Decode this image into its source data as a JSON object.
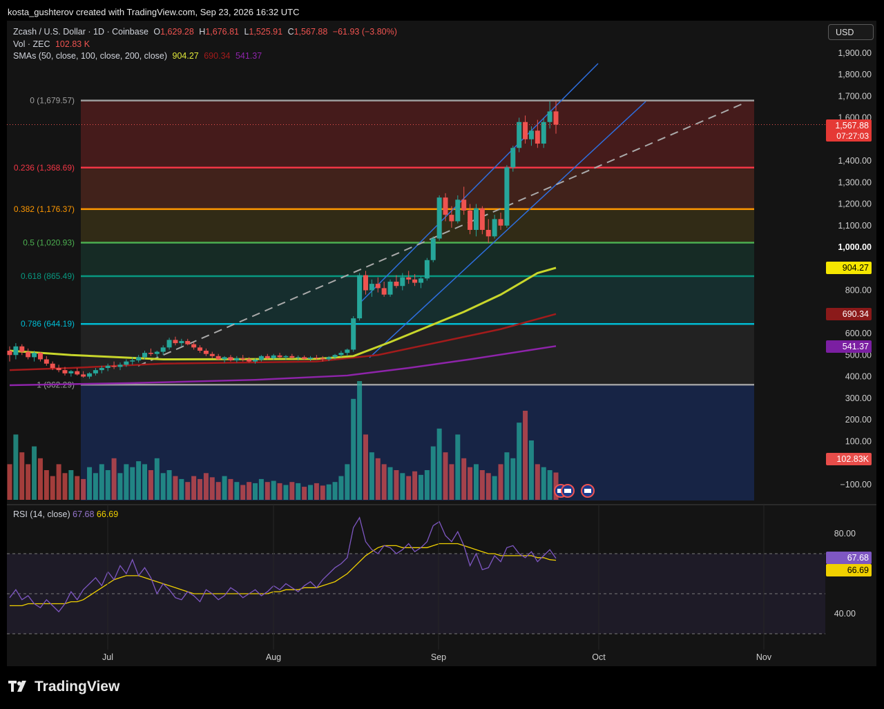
{
  "attribution": "kosta_gushterov created with TradingView.com, Sep 23, 2026 16:32 UTC",
  "brand": "TradingView",
  "currency": "USD",
  "legend": {
    "symbol": "Zcash / U.S. Dollar · 1D · Coinbase",
    "open_label": "O",
    "open": "1,629.28",
    "high_label": "H",
    "high": "1,676.81",
    "low_label": "L",
    "low": "1,525.91",
    "close_label": "C",
    "close": "1,567.88",
    "change": "−61.93 (−3.80%)",
    "vol_label": "Vol · ZEC",
    "vol_value": "102.83 K",
    "sma_label": "SMAs (50, close, 100, close, 200, close)",
    "sma50": "904.27",
    "sma100": "690.34",
    "sma200": "541.37",
    "rsi_label": "RSI (14, close)",
    "rsi_value": "67.68",
    "rsi_ma": "66.69"
  },
  "price_axis": [
    "1,900.00",
    "1,800.00",
    "1,700.00",
    "1,600.00",
    "1,400.00",
    "1,300.00",
    "1,200.00",
    "1,100.00",
    "1,000.00",
    "800.00",
    "600.00",
    "500.00",
    "400.00",
    "300.00",
    "200.00",
    "100.00",
    "−100.00"
  ],
  "rsi_axis": [
    "80.00",
    "40.00"
  ],
  "time_axis": [
    "Jul",
    "Aug",
    "Sep",
    "Oct",
    "Nov"
  ],
  "price_tags": {
    "last": "1,567.88",
    "countdown": "07:27:03",
    "sma50": "904.27",
    "sma100": "690.34",
    "sma200": "541.37",
    "volume": "102.83K",
    "rsi": "67.68",
    "rsi_ma": "66.69"
  },
  "colors": {
    "up": "#26a69a",
    "down": "#ef5350",
    "sma50": "#c8d62b",
    "sma100": "#a31b1b",
    "sma200": "#8e24aa",
    "rsi": "#7e57c2",
    "rsi_ma": "#f0d000",
    "channel": "#2e6fe0"
  },
  "chart_data": {
    "type": "candlestick",
    "fib": [
      {
        "label": "0 (1,679.57)",
        "price": 1679.57,
        "color": "#9e9e9e"
      },
      {
        "label": "0.236 (1,368.69)",
        "price": 1368.69,
        "color": "#f23645"
      },
      {
        "label": "0.382 (1,176.37)",
        "price": 1176.37,
        "color": "#ff9800"
      },
      {
        "label": "0.5 (1,020.93)",
        "price": 1020.93,
        "color": "#4caf50"
      },
      {
        "label": "0.618 (865.49)",
        "price": 865.49,
        "color": "#089981"
      },
      {
        "label": "0.786 (644.19)",
        "price": 644.19,
        "color": "#00bcd4"
      },
      {
        "label": "1 (362.29)",
        "price": 362.29,
        "color": "#9e9e9e"
      }
    ],
    "candles": [
      [
        520,
        540,
        470,
        500
      ],
      [
        500,
        555,
        480,
        540
      ],
      [
        540,
        550,
        500,
        515
      ],
      [
        515,
        530,
        480,
        490
      ],
      [
        490,
        520,
        470,
        510
      ],
      [
        510,
        515,
        470,
        480
      ],
      [
        480,
        495,
        450,
        460
      ],
      [
        460,
        470,
        430,
        440
      ],
      [
        440,
        455,
        420,
        430
      ],
      [
        430,
        445,
        405,
        415
      ],
      [
        415,
        430,
        400,
        425
      ],
      [
        425,
        440,
        405,
        410
      ],
      [
        410,
        425,
        395,
        400
      ],
      [
        400,
        420,
        390,
        415
      ],
      [
        415,
        440,
        405,
        430
      ],
      [
        430,
        450,
        415,
        440
      ],
      [
        440,
        460,
        425,
        450
      ],
      [
        450,
        470,
        435,
        445
      ],
      [
        445,
        465,
        430,
        455
      ],
      [
        455,
        480,
        445,
        470
      ],
      [
        470,
        490,
        455,
        475
      ],
      [
        475,
        500,
        465,
        490
      ],
      [
        490,
        520,
        480,
        510
      ],
      [
        510,
        530,
        495,
        505
      ],
      [
        505,
        520,
        490,
        515
      ],
      [
        515,
        545,
        500,
        535
      ],
      [
        535,
        580,
        525,
        570
      ],
      [
        570,
        585,
        545,
        555
      ],
      [
        555,
        575,
        540,
        565
      ],
      [
        565,
        575,
        545,
        550
      ],
      [
        550,
        560,
        525,
        535
      ],
      [
        535,
        545,
        510,
        520
      ],
      [
        520,
        530,
        495,
        505
      ],
      [
        505,
        515,
        485,
        495
      ],
      [
        495,
        505,
        475,
        480
      ],
      [
        480,
        495,
        465,
        490
      ],
      [
        490,
        500,
        470,
        475
      ],
      [
        475,
        495,
        465,
        485
      ],
      [
        485,
        500,
        470,
        480
      ],
      [
        480,
        490,
        465,
        470
      ],
      [
        470,
        485,
        460,
        478
      ],
      [
        478,
        500,
        470,
        495
      ],
      [
        495,
        505,
        480,
        485
      ],
      [
        485,
        505,
        478,
        498
      ],
      [
        498,
        510,
        485,
        490
      ],
      [
        490,
        500,
        478,
        495
      ],
      [
        495,
        505,
        482,
        488
      ],
      [
        488,
        498,
        475,
        490
      ],
      [
        490,
        498,
        478,
        482
      ],
      [
        482,
        495,
        472,
        488
      ],
      [
        488,
        500,
        478,
        485
      ],
      [
        485,
        495,
        470,
        480
      ],
      [
        480,
        495,
        472,
        490
      ],
      [
        490,
        505,
        480,
        500
      ],
      [
        500,
        520,
        490,
        510
      ],
      [
        510,
        530,
        495,
        525
      ],
      [
        525,
        680,
        515,
        670
      ],
      [
        670,
        880,
        660,
        870
      ],
      [
        870,
        890,
        780,
        800
      ],
      [
        800,
        850,
        770,
        830
      ],
      [
        830,
        860,
        790,
        810
      ],
      [
        810,
        840,
        770,
        780
      ],
      [
        780,
        850,
        770,
        840
      ],
      [
        840,
        870,
        810,
        820
      ],
      [
        820,
        880,
        800,
        860
      ],
      [
        860,
        890,
        830,
        850
      ],
      [
        850,
        875,
        820,
        835
      ],
      [
        835,
        865,
        810,
        855
      ],
      [
        855,
        950,
        845,
        940
      ],
      [
        940,
        1050,
        930,
        1040
      ],
      [
        1040,
        1240,
        1030,
        1230
      ],
      [
        1230,
        1250,
        1120,
        1150
      ],
      [
        1150,
        1190,
        1090,
        1120
      ],
      [
        1120,
        1240,
        1110,
        1220
      ],
      [
        1220,
        1280,
        1150,
        1170
      ],
      [
        1170,
        1200,
        1060,
        1080
      ],
      [
        1080,
        1200,
        1050,
        1180
      ],
      [
        1180,
        1190,
        1060,
        1080
      ],
      [
        1080,
        1130,
        1020,
        1050
      ],
      [
        1050,
        1150,
        1040,
        1130
      ],
      [
        1130,
        1160,
        1080,
        1100
      ],
      [
        1100,
        1380,
        1090,
        1370
      ],
      [
        1370,
        1470,
        1350,
        1460
      ],
      [
        1460,
        1600,
        1440,
        1580
      ],
      [
        1580,
        1610,
        1480,
        1500
      ],
      [
        1500,
        1560,
        1470,
        1540
      ],
      [
        1540,
        1590,
        1460,
        1480
      ],
      [
        1480,
        1600,
        1460,
        1580
      ],
      [
        1580,
        1676,
        1550,
        1629
      ],
      [
        1629.28,
        1676.81,
        1525.91,
        1567.88
      ]
    ],
    "sma50": [
      [
        0,
        520
      ],
      [
        10,
        500
      ],
      [
        25,
        480
      ],
      [
        50,
        482
      ],
      [
        56,
        495
      ],
      [
        62,
        560
      ],
      [
        68,
        630
      ],
      [
        74,
        700
      ],
      [
        80,
        780
      ],
      [
        86,
        880
      ],
      [
        89,
        904.27
      ]
    ],
    "sma100": [
      [
        0,
        430
      ],
      [
        10,
        440
      ],
      [
        25,
        460
      ],
      [
        50,
        470
      ],
      [
        60,
        500
      ],
      [
        70,
        560
      ],
      [
        80,
        620
      ],
      [
        89,
        690.34
      ]
    ],
    "sma200": [
      [
        0,
        360
      ],
      [
        20,
        370
      ],
      [
        40,
        385
      ],
      [
        55,
        405
      ],
      [
        65,
        440
      ],
      [
        75,
        480
      ],
      [
        89,
        541.37
      ]
    ],
    "rsi": [
      48,
      52,
      47,
      49,
      45,
      43,
      47,
      44,
      41,
      45,
      51,
      47,
      52,
      55,
      58,
      54,
      61,
      57,
      64,
      60,
      67,
      59,
      63,
      58,
      50,
      55,
      52,
      48,
      47,
      51,
      49,
      46,
      52,
      50,
      47,
      49,
      53,
      51,
      48,
      50,
      52,
      49,
      51,
      54,
      52,
      55,
      53,
      51,
      54,
      56,
      53,
      57,
      60,
      63,
      65,
      68,
      83,
      88,
      76,
      72,
      70,
      74,
      73,
      70,
      72,
      75,
      71,
      73,
      76,
      84,
      86,
      79,
      76,
      81,
      74,
      64,
      70,
      62,
      63,
      69,
      66,
      73,
      74,
      70,
      68,
      71,
      66,
      69,
      72,
      67.68
    ],
    "rsi_ma": [
      44,
      44,
      44,
      45,
      45,
      45,
      45,
      45,
      45,
      45,
      46,
      46,
      47,
      49,
      51,
      53,
      55,
      57,
      58,
      59,
      59,
      59,
      58,
      57,
      56,
      55,
      54,
      53,
      52,
      51,
      50,
      50,
      50,
      50,
      50,
      50,
      50,
      50,
      50,
      50,
      50,
      50,
      50,
      51,
      51,
      52,
      52,
      52,
      53,
      53,
      53,
      54,
      55,
      56,
      58,
      60,
      63,
      66,
      69,
      71,
      73,
      74,
      74,
      74,
      73,
      73,
      73,
      73,
      73,
      74,
      75,
      75,
      75,
      75,
      74,
      73,
      72,
      71,
      70,
      70,
      69,
      69,
      69,
      69,
      69,
      69,
      68,
      68,
      67,
      66.69
    ],
    "volume": [
      60,
      110,
      80,
      60,
      90,
      70,
      50,
      40,
      60,
      45,
      50,
      40,
      35,
      55,
      45,
      60,
      50,
      70,
      45,
      60,
      55,
      65,
      60,
      50,
      70,
      45,
      50,
      40,
      35,
      30,
      40,
      35,
      45,
      38,
      30,
      40,
      35,
      30,
      25,
      30,
      28,
      35,
      30,
      32,
      28,
      25,
      30,
      28,
      22,
      25,
      28,
      24,
      26,
      30,
      40,
      60,
      170,
      200,
      110,
      80,
      70,
      60,
      55,
      50,
      45,
      40,
      48,
      42,
      50,
      90,
      120,
      80,
      60,
      110,
      70,
      55,
      60,
      50,
      45,
      40,
      60,
      80,
      70,
      130,
      150,
      100,
      60,
      55,
      50,
      46
    ],
    "axes": {
      "price_min": -100,
      "price_max": 1900,
      "rsi_levels": [
        30,
        50,
        70
      ]
    }
  }
}
